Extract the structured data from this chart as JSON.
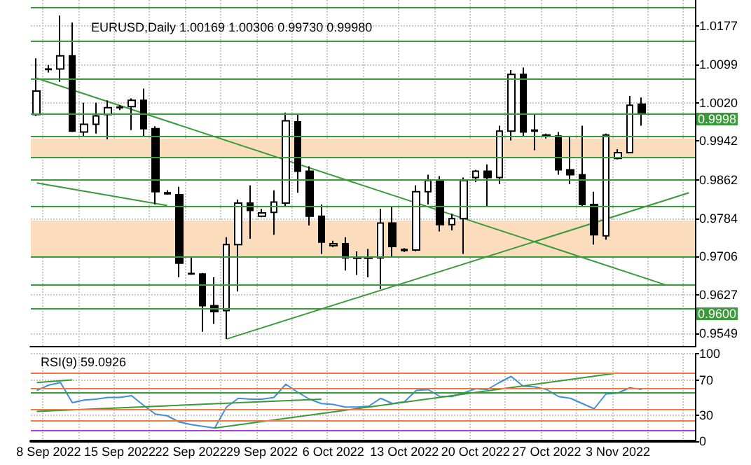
{
  "chart_data": [
    {
      "type": "candlestick",
      "title": "EURUSD,Daily 1.00169 1.00306 0.99730 0.99980",
      "tick_labels": "y",
      "grid": true,
      "categories": [
        null,
        null,
        null,
        null,
        null,
        null,
        null,
        null,
        null,
        null,
        null,
        null,
        null,
        null,
        null,
        null,
        null,
        null,
        null,
        null,
        null,
        null,
        null,
        null,
        null,
        null,
        null,
        null,
        null,
        null,
        null,
        null,
        null,
        null,
        null,
        null,
        null,
        null,
        null,
        null,
        null,
        null,
        null,
        null,
        null,
        null,
        null,
        null,
        null,
        null,
        null,
        null,
        null,
        null,
        null,
        null
      ],
      "ohlc": [
        [
          0.9996,
          1.0111,
          0.9993,
          1.0044
        ],
        [
          1.0089,
          1.0097,
          1.0082,
          1.0088
        ],
        [
          1.0089,
          1.0198,
          1.0063,
          1.0116
        ],
        [
          1.0116,
          1.0184,
          0.996,
          0.9962
        ],
        [
          0.996,
          1.002,
          0.9952,
          0.9976
        ],
        [
          0.9976,
          1.002,
          0.9957,
          0.9993
        ],
        [
          0.9996,
          1.0025,
          0.9945,
          1.001
        ],
        [
          1.001,
          1.0015,
          1.0005,
          1.0011
        ],
        [
          1.0012,
          1.0029,
          0.9964,
          1.0025
        ],
        [
          1.0025,
          1.0049,
          0.9952,
          0.9967
        ],
        [
          0.9967,
          0.9972,
          0.9812,
          0.9838
        ],
        [
          0.9836,
          0.9841,
          0.9832,
          0.9834
        ],
        [
          0.9832,
          0.9848,
          0.9663,
          0.9692
        ],
        [
          0.9671,
          0.9706,
          0.9668,
          0.967
        ],
        [
          0.967,
          0.9672,
          0.9552,
          0.9605
        ],
        [
          0.9605,
          0.9663,
          0.9568,
          0.9593
        ],
        [
          0.9595,
          0.9745,
          0.9537,
          0.973
        ],
        [
          0.973,
          0.9822,
          0.9634,
          0.9815
        ],
        [
          0.9815,
          0.9851,
          0.9742,
          0.98
        ],
        [
          0.9788,
          0.9803,
          0.9786,
          0.9795
        ],
        [
          0.9796,
          0.9841,
          0.975,
          0.9817
        ],
        [
          0.9815,
          1.0,
          0.9808,
          0.9983
        ],
        [
          0.9981,
          0.9996,
          0.9836,
          0.988
        ],
        [
          0.988,
          0.989,
          0.9769,
          0.9788
        ],
        [
          0.9788,
          0.9812,
          0.9711,
          0.9735
        ],
        [
          0.9728,
          0.9738,
          0.9725,
          0.9732
        ],
        [
          0.9732,
          0.9745,
          0.9677,
          0.9703
        ],
        [
          0.9704,
          0.9716,
          0.9668,
          0.9702
        ],
        [
          0.9702,
          0.9721,
          0.9663,
          0.9704
        ],
        [
          0.9703,
          0.9803,
          0.9639,
          0.9774
        ],
        [
          0.9774,
          0.9808,
          0.9706,
          0.9726
        ],
        [
          0.972,
          0.9723,
          0.9715,
          0.9718
        ],
        [
          0.9719,
          0.9851,
          0.9716,
          0.9838
        ],
        [
          0.9838,
          0.9873,
          0.9812,
          0.9861
        ],
        [
          0.9861,
          0.987,
          0.9757,
          0.9771
        ],
        [
          0.9771,
          0.9793,
          0.9759,
          0.9783
        ],
        [
          0.9783,
          0.9867,
          0.9711,
          0.9861
        ],
        [
          0.9867,
          0.9883,
          0.9858,
          0.988
        ],
        [
          0.988,
          0.9894,
          0.9808,
          0.9867
        ],
        [
          0.9867,
          0.9973,
          0.9854,
          0.9962
        ],
        [
          0.9962,
          1.0087,
          0.9943,
          1.0078
        ],
        [
          1.0078,
          1.0092,
          0.9952,
          0.996
        ],
        [
          0.9964,
          0.9996,
          0.9923,
          0.9962
        ],
        [
          0.9952,
          0.9957,
          0.9947,
          0.9954
        ],
        [
          0.9952,
          0.996,
          0.9873,
          0.9883
        ],
        [
          0.9883,
          0.9952,
          0.9854,
          0.9873
        ],
        [
          0.9873,
          0.9973,
          0.9808,
          0.9812
        ],
        [
          0.9812,
          0.9838,
          0.973,
          0.975
        ],
        [
          0.9748,
          0.9957,
          0.974,
          0.9954
        ],
        [
          0.9906,
          0.9925,
          0.9904,
          0.9918
        ],
        [
          0.9918,
          1.0034,
          0.9918,
          1.0015
        ],
        [
          1.00169,
          1.00306,
          0.9973,
          0.9998
        ],
        null,
        null,
        null,
        null
      ],
      "series": [
        {
          "type": "line",
          "color": "#3a9a3a",
          "values": [
            1.007,
            null,
            null,
            null,
            null,
            null,
            null,
            null,
            null,
            null,
            null,
            null,
            null,
            null,
            null,
            null,
            null,
            null,
            null,
            null,
            null,
            null,
            null,
            null,
            null,
            null,
            null,
            null,
            null,
            null,
            null,
            null,
            null,
            null,
            null,
            null,
            null,
            null,
            null,
            null,
            null,
            null,
            null,
            null,
            null,
            null,
            null,
            null,
            null,
            null,
            null,
            null,
            null,
            0.9648,
            null,
            null
          ]
        },
        {
          "type": "line",
          "color": "#3a9a3a",
          "values": [
            0.9856,
            null,
            null,
            null,
            null,
            null,
            null,
            null,
            null,
            null,
            null,
            0.981,
            null,
            null,
            null,
            null,
            null,
            null,
            null,
            null,
            null,
            null,
            null,
            null,
            null,
            null,
            null,
            null,
            null,
            null,
            null,
            null,
            null,
            null,
            null,
            null,
            null,
            null,
            null,
            null,
            null,
            null,
            null,
            null,
            null,
            null,
            null,
            null,
            null,
            null,
            null,
            null,
            null,
            null,
            null,
            null
          ]
        },
        {
          "type": "line",
          "color": "#3a9a3a",
          "values": [
            null,
            null,
            null,
            null,
            null,
            null,
            null,
            null,
            null,
            null,
            null,
            null,
            null,
            null,
            null,
            null,
            0.9537,
            null,
            null,
            null,
            null,
            null,
            null,
            null,
            null,
            null,
            null,
            null,
            null,
            null,
            null,
            null,
            null,
            null,
            null,
            null,
            null,
            null,
            null,
            null,
            null,
            null,
            null,
            null,
            null,
            null,
            null,
            null,
            null,
            null,
            null,
            null,
            null,
            null,
            null,
            0.9836
          ]
        }
      ],
      "ylim": [
        0.952,
        1.023
      ],
      "yticks": [
        1.0177,
        1.0099,
        {
          "value": 1.002,
          "label": "1.0020"
        },
        0.9942,
        0.9862,
        0.9784,
        0.9706,
        0.9627,
        0.9549
      ],
      "bands": [
        {
          "axis": "y",
          "from": 0.9908,
          "to": 0.9947,
          "color": "#fbdcbc"
        },
        {
          "axis": "y",
          "from": 0.9706,
          "to": 0.9779,
          "color": "#fbdcbc"
        }
      ],
      "ref_lines": [
        {
          "axis": "y",
          "value": 1.0215,
          "color": "#3a9a3a"
        },
        {
          "axis": "y",
          "value": 1.0145,
          "color": "#3a9a3a"
        },
        {
          "axis": "y",
          "value": 1.007,
          "color": "#3a9a3a"
        },
        {
          "axis": "y",
          "value": 0.9998,
          "color": "#3a9a3a",
          "label": "0.9998"
        },
        {
          "axis": "y",
          "value": 0.9952,
          "color": "#3a9a3a"
        },
        {
          "axis": "y",
          "value": 0.9908,
          "color": "#3a9a3a"
        },
        {
          "axis": "y",
          "value": 0.9863,
          "color": "#3a9a3a"
        },
        {
          "axis": "y",
          "value": 0.9808,
          "color": "#3a9a3a"
        },
        {
          "axis": "y",
          "value": 0.9706,
          "color": "#3a9a3a"
        },
        {
          "axis": "y",
          "value": 0.9648,
          "color": "#3a9a3a"
        },
        {
          "axis": "y",
          "value": 0.96,
          "color": "#3a9a3a",
          "label": "0.9600"
        }
      ]
    },
    {
      "type": "line",
      "title": "RSI(9) 59.0926",
      "grid": true,
      "categories": [
        null,
        "8 Sep 2022",
        null,
        null,
        null,
        null,
        null,
        "15 Sep 2022",
        null,
        null,
        null,
        null,
        null,
        "22 Sep 2022",
        null,
        null,
        null,
        null,
        null,
        "29 Sep 2022",
        null,
        null,
        null,
        null,
        null,
        "6 Oct 2022",
        null,
        null,
        null,
        null,
        null,
        "13 Oct 2022",
        null,
        null,
        null,
        null,
        null,
        "20 Oct 2022",
        null,
        null,
        null,
        null,
        null,
        "27 Oct 2022",
        null,
        null,
        null,
        null,
        null,
        "3 Nov 2022",
        null,
        null,
        null,
        null,
        null,
        null
      ],
      "series": [
        {
          "type": "line",
          "color": "#3d8fd6",
          "values": [
            58,
            64,
            67,
            44,
            47,
            48,
            50,
            50,
            52,
            41,
            31,
            29,
            22,
            19,
            17,
            15,
            39,
            49,
            48,
            48,
            50,
            65,
            56,
            48,
            43,
            42,
            39,
            39,
            40,
            49,
            43,
            45,
            58,
            59,
            51,
            51,
            55,
            60,
            59,
            67,
            74,
            63,
            62,
            59,
            51,
            49,
            43,
            37,
            54,
            55,
            61,
            59.0926,
            null,
            null,
            null,
            null
          ]
        },
        {
          "type": "line",
          "color": "#3a9a3a",
          "values": [
            34,
            null,
            null,
            null,
            null,
            null,
            null,
            null,
            null,
            null,
            null,
            null,
            null,
            null,
            null,
            null,
            null,
            null,
            null,
            null,
            null,
            null,
            null,
            null,
            48,
            null,
            null,
            null,
            null,
            null,
            null,
            null,
            null,
            null,
            null,
            null,
            null,
            null,
            null,
            null,
            null,
            null,
            null,
            null,
            null,
            null,
            null,
            null,
            null,
            null,
            null,
            null,
            null,
            null,
            null,
            null
          ]
        },
        {
          "type": "line",
          "color": "#3a9a3a",
          "values": [
            null,
            null,
            null,
            null,
            null,
            null,
            null,
            null,
            null,
            null,
            null,
            null,
            null,
            null,
            null,
            15,
            null,
            null,
            null,
            null,
            null,
            null,
            null,
            null,
            null,
            null,
            null,
            null,
            null,
            null,
            null,
            null,
            null,
            null,
            null,
            null,
            null,
            null,
            null,
            null,
            null,
            null,
            null,
            null,
            null,
            null,
            null,
            null,
            null,
            78,
            null,
            null,
            null,
            null,
            null,
            null
          ]
        },
        {
          "type": "line",
          "color": "#3a9a3a",
          "values": [
            67,
            null,
            null,
            70,
            null,
            null,
            null,
            null,
            null,
            null,
            null,
            null,
            null,
            null,
            null,
            null,
            null,
            null,
            null,
            null,
            null,
            null,
            null,
            null,
            null,
            null,
            null,
            null,
            null,
            null,
            null,
            null,
            null,
            null,
            null,
            null,
            null,
            null,
            null,
            null,
            null,
            null,
            null,
            null,
            null,
            null,
            null,
            null,
            null,
            null,
            null,
            null,
            null,
            null,
            null,
            null
          ]
        }
      ],
      "ylim": [
        0,
        100
      ],
      "yticks": [
        0,
        30,
        70,
        100
      ],
      "ref_lines": [
        {
          "axis": "y",
          "value": 78,
          "color": "#f07b3f"
        },
        {
          "axis": "y",
          "value": 60,
          "color": "#f07b3f"
        },
        {
          "axis": "y",
          "value": 55.5,
          "color": "#3a9a3a"
        },
        {
          "axis": "y",
          "value": 37,
          "color": "#f07b3f"
        },
        {
          "axis": "y",
          "value": 23,
          "color": "#f07b3f"
        },
        {
          "axis": "y",
          "value": 12.5,
          "color": "#b03cd8"
        }
      ]
    }
  ]
}
